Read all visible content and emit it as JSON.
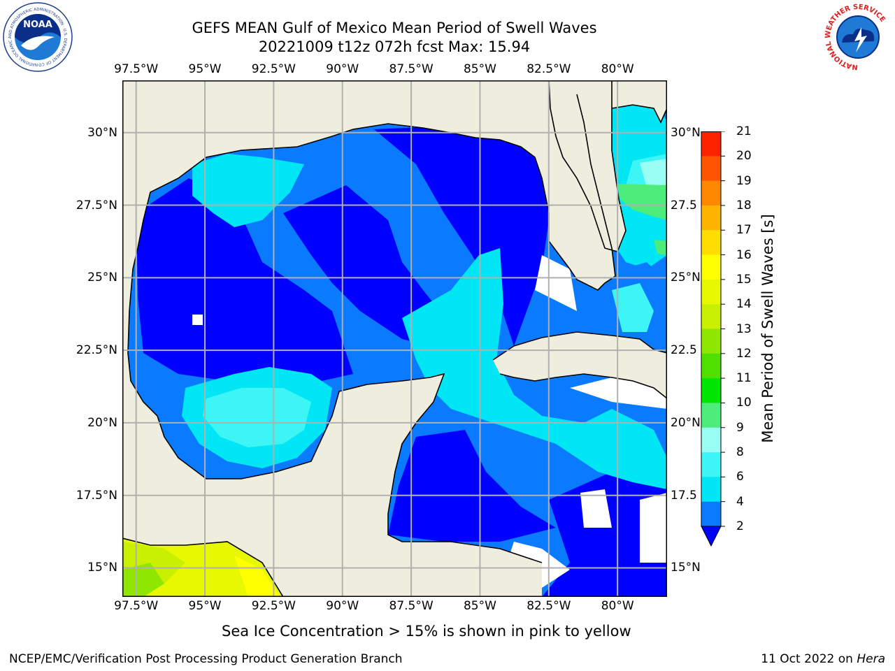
{
  "header": {
    "title_line_1": "GEFS MEAN Gulf of Mexico Mean Period of Swell Waves",
    "title_line_2": "20221009 t12z 072h fcst   Max: 15.94"
  },
  "logos": {
    "left": {
      "name": "NOAA",
      "text": "NOAA",
      "ring_text": "NATIONAL OCEANIC AND ATMOSPHERIC ADMINISTRATION · U.S. DEPARTMENT OF COMMERCE"
    },
    "right": {
      "name": "National Weather Service",
      "ring_text": "NATIONAL WEATHER SERVICE"
    }
  },
  "map": {
    "lon_labels": [
      "97.5°W",
      "95°W",
      "92.5°W",
      "90°W",
      "87.5°W",
      "85°W",
      "82.5°W",
      "80°W"
    ],
    "lat_labels_left": [
      "30°N",
      "27.5°N",
      "25°N",
      "22.5°N",
      "20°N",
      "17.5°N",
      "15°N"
    ],
    "lat_labels_right": [
      "30°N",
      "27.5",
      "25°N",
      "22.5",
      "20°N",
      "17.5",
      "15°N"
    ],
    "extent": {
      "lon": [
        -98,
        -78.2
      ],
      "lat": [
        14.0,
        31.8
      ]
    },
    "colors": {
      "land": "#efedde",
      "missing": "#ffffff",
      "grid": "#b0b0b0",
      "coast": "#000000"
    }
  },
  "colorbar": {
    "title": "Mean Period of Swell Waves [s]",
    "ticks": [
      "2",
      "4",
      "6",
      "8",
      "9",
      "10",
      "11",
      "12",
      "13",
      "14",
      "15",
      "16",
      "17",
      "18",
      "19",
      "20",
      "21"
    ],
    "colors": [
      "#0a7bff",
      "#00e6f5",
      "#3df5f5",
      "#99fff5",
      "#4ded7b",
      "#00e600",
      "#4fe000",
      "#8fe600",
      "#c8f000",
      "#e8f800",
      "#ffff00",
      "#ffdd00",
      "#ffb300",
      "#ff8800",
      "#ff5500",
      "#ff2200"
    ],
    "extend_color": "#0000ff"
  },
  "chart_data": {
    "type": "heatmap",
    "title": "GEFS MEAN Gulf of Mexico Mean Period of Swell Waves",
    "subtitle": "20221009 t12z 072h fcst   Max: 15.94",
    "units": "s",
    "levels": [
      2,
      4,
      6,
      8,
      9,
      10,
      11,
      12,
      13,
      14,
      15,
      16,
      17,
      18,
      19,
      20,
      21
    ],
    "max_value": 15.94
  },
  "footer": {
    "note": "Sea Ice Concentration > 15% is shown in pink to yellow",
    "left": "NCEP/EMC/Verification Post Processing Product Generation Branch",
    "right_prefix": "11 Oct 2022 on ",
    "right_host": "Hera"
  }
}
